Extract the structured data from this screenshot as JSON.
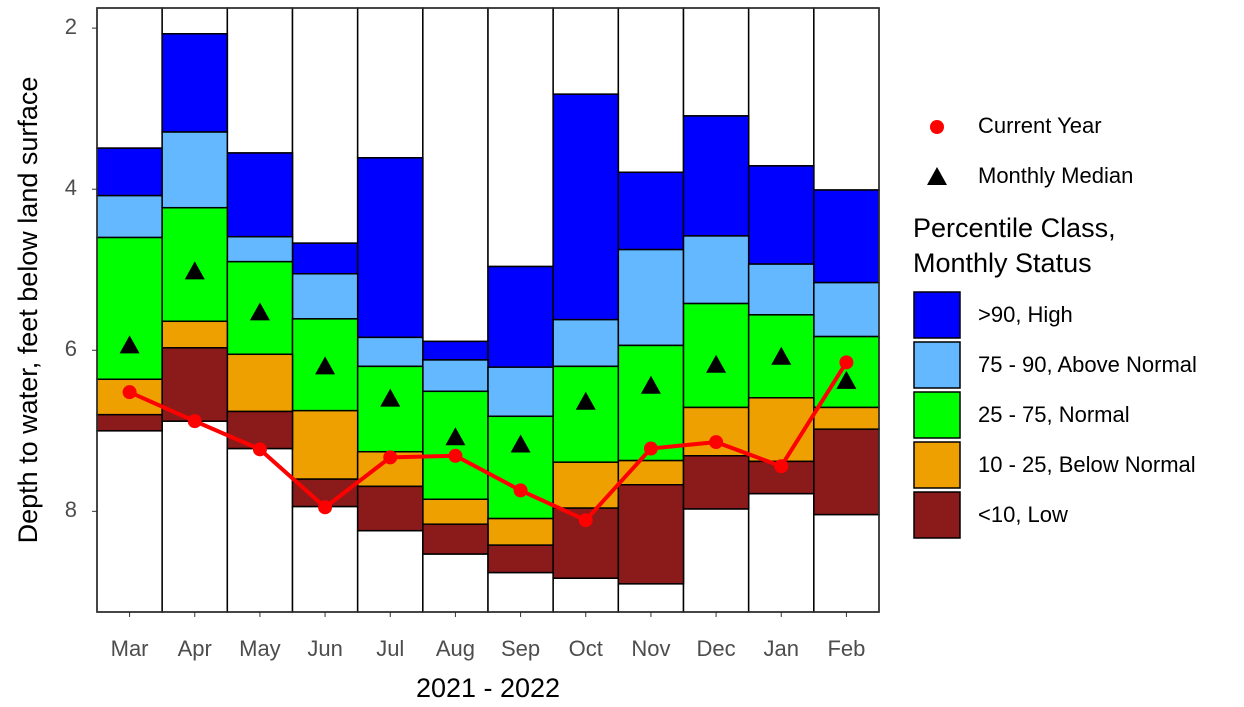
{
  "chart_data": {
    "type": "percentile_range",
    "xlabel": "2021 - 2022",
    "ylabel": "Depth to water, feet below land surface",
    "categories": [
      "Mar",
      "Apr",
      "May",
      "Jun",
      "Jul",
      "Aug",
      "Sep",
      "Oct",
      "Nov",
      "Dec",
      "Jan",
      "Feb"
    ],
    "ylim": [
      1.75,
      9.25
    ],
    "y_inverted": true,
    "yticks": [
      2,
      4,
      6,
      8
    ],
    "legend_title": [
      "Percentile Class,",
      "Monthly Status"
    ],
    "series": [
      {
        "name": ">90, High",
        "kind": "range",
        "color": "#0000ff",
        "values": [
          [
            3.49,
            4.08
          ],
          [
            2.07,
            3.29
          ],
          [
            3.55,
            4.59
          ],
          [
            4.67,
            5.05
          ],
          [
            3.61,
            5.84
          ],
          [
            5.89,
            6.12
          ],
          [
            4.96,
            6.21
          ],
          [
            2.82,
            5.62
          ],
          [
            3.79,
            4.75
          ],
          [
            3.09,
            4.58
          ],
          [
            3.71,
            4.93
          ],
          [
            4.01,
            5.16
          ]
        ]
      },
      {
        "name": "75 - 90, Above Normal",
        "kind": "range",
        "color": "#63b8ff",
        "values": [
          [
            4.08,
            4.6
          ],
          [
            3.29,
            4.23
          ],
          [
            4.59,
            4.9
          ],
          [
            5.05,
            5.61
          ],
          [
            5.84,
            6.2
          ],
          [
            6.12,
            6.51
          ],
          [
            6.21,
            6.82
          ],
          [
            5.62,
            6.2
          ],
          [
            4.75,
            5.94
          ],
          [
            4.58,
            5.42
          ],
          [
            4.93,
            5.56
          ],
          [
            5.16,
            5.83
          ]
        ]
      },
      {
        "name": "25 - 75, Normal",
        "kind": "range",
        "color": "#00ff00",
        "values": [
          [
            4.6,
            6.36
          ],
          [
            4.23,
            5.64
          ],
          [
            4.9,
            6.05
          ],
          [
            5.61,
            6.75
          ],
          [
            6.2,
            7.26
          ],
          [
            6.51,
            7.85
          ],
          [
            6.82,
            8.09
          ],
          [
            6.2,
            7.39
          ],
          [
            5.94,
            7.37
          ],
          [
            5.42,
            6.71
          ],
          [
            5.56,
            6.59
          ],
          [
            5.83,
            6.71
          ]
        ]
      },
      {
        "name": "10 - 25, Below Normal",
        "kind": "range",
        "color": "#eea000",
        "values": [
          [
            6.36,
            6.8
          ],
          [
            5.64,
            5.97
          ],
          [
            6.05,
            6.76
          ],
          [
            6.75,
            7.6
          ],
          [
            7.26,
            7.69
          ],
          [
            7.85,
            8.16
          ],
          [
            8.09,
            8.42
          ],
          [
            7.39,
            7.96
          ],
          [
            7.37,
            7.67
          ],
          [
            6.71,
            7.31
          ],
          [
            6.59,
            7.38
          ],
          [
            6.71,
            6.98
          ]
        ]
      },
      {
        "name": "<10, Low",
        "kind": "range",
        "color": "#8b1a1a",
        "values": [
          [
            6.8,
            7.0
          ],
          [
            5.97,
            6.88
          ],
          [
            6.76,
            7.22
          ],
          [
            7.6,
            7.94
          ],
          [
            7.69,
            8.24
          ],
          [
            8.16,
            8.53
          ],
          [
            8.42,
            8.76
          ],
          [
            7.96,
            8.83
          ],
          [
            7.67,
            8.9
          ],
          [
            7.31,
            7.97
          ],
          [
            7.38,
            7.78
          ],
          [
            6.98,
            8.04
          ]
        ]
      },
      {
        "name": "Monthly Median",
        "kind": "point",
        "marker": "triangle",
        "color": "#000000",
        "values": [
          5.94,
          5.02,
          5.53,
          6.2,
          6.6,
          7.08,
          7.17,
          6.64,
          6.44,
          6.18,
          6.08,
          6.38
        ]
      },
      {
        "name": "Current Year",
        "kind": "line",
        "marker": "circle",
        "color": "#ff0000",
        "values": [
          6.52,
          6.88,
          7.23,
          7.95,
          7.33,
          7.31,
          7.74,
          8.11,
          7.22,
          7.14,
          7.44,
          6.15
        ]
      }
    ]
  }
}
